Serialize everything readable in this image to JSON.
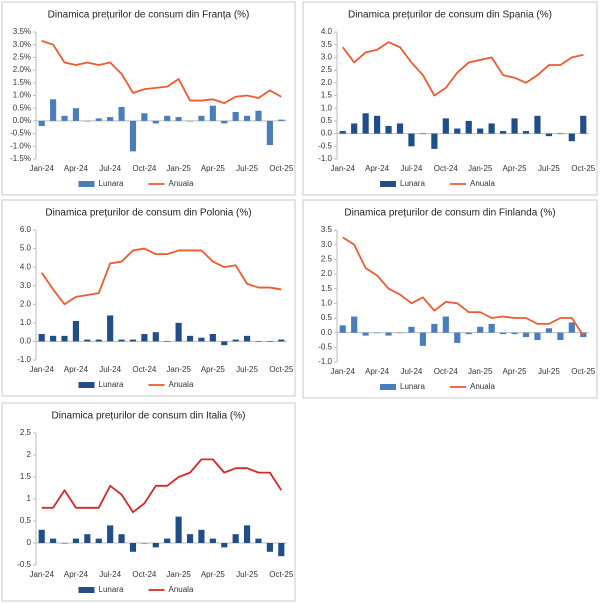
{
  "chart_data": [
    {
      "type": "combo",
      "title": "Dinamica prețurilor de consum din Franța (%)",
      "categories": [
        "Jan-24",
        null,
        null,
        "Apr-24",
        null,
        null,
        "Jul-24",
        null,
        null,
        "Oct-24",
        null,
        null,
        "Jan-25",
        null,
        null,
        "Apr-25",
        null,
        null,
        "Jul-25",
        null,
        null,
        "Oct-25"
      ],
      "series": [
        {
          "name": "Lunara",
          "type": "bar",
          "color": "#4a7ebb",
          "values": [
            -0.2,
            0.85,
            0.2,
            0.5,
            0.0,
            0.1,
            0.15,
            0.55,
            -1.2,
            0.3,
            -0.1,
            0.2,
            0.15,
            0.0,
            0.2,
            0.6,
            -0.1,
            0.35,
            0.2,
            0.4,
            -0.95,
            0.05
          ]
        },
        {
          "name": "Anuala",
          "type": "line",
          "color": "#f05a30",
          "values": [
            3.15,
            3.0,
            2.3,
            2.2,
            2.3,
            2.2,
            2.3,
            1.85,
            1.1,
            1.25,
            1.3,
            1.35,
            1.65,
            0.8,
            0.8,
            0.85,
            0.7,
            0.95,
            1.0,
            0.9,
            1.2,
            0.95
          ]
        }
      ],
      "ylim": [
        -1.5,
        3.5
      ],
      "yticks": [
        {
          "value": 3.5,
          "label": "3.5%"
        },
        {
          "value": 3.0,
          "label": "3.0%"
        },
        {
          "value": 2.5,
          "label": "2.5%"
        },
        {
          "value": 2.0,
          "label": "2.0%"
        },
        {
          "value": 1.5,
          "label": "1.5%"
        },
        {
          "value": 1.0,
          "label": "1.0%"
        },
        {
          "value": 0.5,
          "label": "0.5%"
        },
        {
          "value": 0,
          "label": "0.0%"
        },
        {
          "value": -0.5,
          "label": "-0.5%"
        },
        {
          "value": -1.0,
          "label": "-1.0%"
        },
        {
          "value": -1.5,
          "label": "-1.5%"
        }
      ],
      "legend": "bottom"
    },
    {
      "type": "combo",
      "title": "Dinamica prețurilor de consum din Spania (%)",
      "categories": [
        "Jan-24",
        null,
        null,
        "Apr-24",
        null,
        null,
        "Jul-24",
        null,
        null,
        "Oct-24",
        null,
        null,
        "Jan-25",
        null,
        null,
        "Apr-25",
        null,
        null,
        "Jul-25",
        null,
        null,
        "Oct-25"
      ],
      "series": [
        {
          "name": "Lunara",
          "type": "bar",
          "color": "#1f4e8a",
          "values": [
            0.1,
            0.4,
            0.8,
            0.7,
            0.3,
            0.4,
            -0.5,
            0.0,
            -0.6,
            0.6,
            0.2,
            0.5,
            0.2,
            0.4,
            0.1,
            0.6,
            0.1,
            0.7,
            -0.1,
            0.0,
            -0.3,
            0.7
          ]
        },
        {
          "name": "Anuala",
          "type": "line",
          "color": "#f05a30",
          "values": [
            3.4,
            2.8,
            3.2,
            3.3,
            3.6,
            3.4,
            2.8,
            2.3,
            1.5,
            1.8,
            2.4,
            2.8,
            2.9,
            3.0,
            2.3,
            2.2,
            2.0,
            2.3,
            2.7,
            2.7,
            3.0,
            3.1
          ]
        }
      ],
      "ylim": [
        -1.0,
        4.0
      ],
      "yticks": [
        {
          "value": 4.0,
          "label": "4.0"
        },
        3.5,
        {
          "value": 3.0,
          "label": "3.0"
        },
        2.5,
        {
          "value": 2.0,
          "label": "2.0"
        },
        1.5,
        {
          "value": 1.0,
          "label": "1.0"
        },
        0.5,
        {
          "value": 0,
          "label": "0.0"
        },
        -0.5,
        {
          "value": -1.0,
          "label": "-1.0"
        }
      ],
      "legend": "bottom"
    },
    {
      "type": "combo",
      "title": "Dinamica prețurilor de consum din Polonia (%)",
      "categories": [
        "Jan-24",
        null,
        null,
        "Apr-24",
        null,
        null,
        "Jul-24",
        null,
        null,
        "Oct-24",
        null,
        null,
        "Jan-25",
        null,
        null,
        "Apr-25",
        null,
        null,
        "Jul-25",
        null,
        null,
        "Oct-25"
      ],
      "series": [
        {
          "name": "Lunara",
          "type": "bar",
          "color": "#1f4e8a",
          "values": [
            0.4,
            0.3,
            0.3,
            1.1,
            0.1,
            0.1,
            1.4,
            0.1,
            0.1,
            0.4,
            0.5,
            0.0,
            1.0,
            0.3,
            0.2,
            0.4,
            -0.2,
            0.1,
            0.3,
            0.0,
            0.0,
            0.1
          ]
        },
        {
          "name": "Anuala",
          "type": "line",
          "color": "#f05a30",
          "values": [
            3.7,
            2.8,
            2.0,
            2.4,
            2.5,
            2.6,
            4.2,
            4.3,
            4.9,
            5.0,
            4.7,
            4.7,
            4.9,
            4.9,
            4.9,
            4.3,
            4.0,
            4.1,
            3.1,
            2.9,
            2.9,
            2.8
          ]
        }
      ],
      "ylim": [
        -1.0,
        6.0
      ],
      "yticks": [
        {
          "value": 6.0,
          "label": "6.0"
        },
        {
          "value": 5.0,
          "label": "5.0"
        },
        {
          "value": 4.0,
          "label": "4.0"
        },
        {
          "value": 3.0,
          "label": "3.0"
        },
        {
          "value": 2.0,
          "label": "2.0"
        },
        {
          "value": 1.0,
          "label": "1.0"
        },
        {
          "value": 0,
          "label": "0.0"
        },
        {
          "value": -1.0,
          "label": "-1.0"
        }
      ],
      "legend": "bottom"
    },
    {
      "type": "combo",
      "title": "Dinamica prețurilor de consum din Finlanda (%)",
      "categories": [
        "Jan-24",
        null,
        null,
        "Apr-24",
        null,
        null,
        "Jul-24",
        null,
        null,
        "Oct-24",
        null,
        null,
        "Jan-25",
        null,
        null,
        "Apr-25",
        null,
        null,
        "Jul-25",
        null,
        null,
        "Oct-25"
      ],
      "series": [
        {
          "name": "Lunara",
          "type": "bar",
          "color": "#4a7ebb",
          "values": [
            0.25,
            0.55,
            -0.1,
            0.0,
            -0.1,
            0.0,
            0.2,
            -0.45,
            0.3,
            0.55,
            -0.35,
            -0.05,
            0.2,
            0.3,
            -0.05,
            -0.05,
            -0.15,
            -0.25,
            0.15,
            -0.25,
            0.35,
            -0.15
          ]
        },
        {
          "name": "Anuala",
          "type": "line",
          "color": "#f05a30",
          "values": [
            3.25,
            3.0,
            2.2,
            1.95,
            1.5,
            1.3,
            1.0,
            1.2,
            0.75,
            1.05,
            1.0,
            0.7,
            0.7,
            0.5,
            0.55,
            0.5,
            0.5,
            0.3,
            0.3,
            0.5,
            0.5,
            -0.1
          ]
        }
      ],
      "ylim": [
        -1.0,
        3.5
      ],
      "yticks": [
        3.5,
        {
          "value": 3.0,
          "label": "3.0"
        },
        2.5,
        {
          "value": 2.0,
          "label": "2.0"
        },
        1.5,
        {
          "value": 1.0,
          "label": "1.0"
        },
        0.5,
        {
          "value": 0,
          "label": "0.0"
        },
        -0.5,
        {
          "value": -1.0,
          "label": "-1.0"
        }
      ],
      "legend": "bottom"
    },
    {
      "type": "combo",
      "title": "Dinamica prețurilor de consum din Italia (%)",
      "categories": [
        "Jan-24",
        null,
        null,
        "Apr-24",
        null,
        null,
        "Jul-24",
        null,
        null,
        "Oct-24",
        null,
        null,
        "Jan-25",
        null,
        null,
        "Apr-25",
        null,
        null,
        "Jul-25",
        null,
        null,
        "Oct-25"
      ],
      "series": [
        {
          "name": "Lunara",
          "type": "bar",
          "color": "#1f4e8a",
          "values": [
            0.3,
            0.1,
            0.0,
            0.1,
            0.2,
            0.1,
            0.4,
            0.2,
            -0.2,
            0.0,
            -0.1,
            0.1,
            0.6,
            0.2,
            0.3,
            0.1,
            -0.1,
            0.2,
            0.4,
            0.1,
            -0.2,
            -0.3
          ]
        },
        {
          "name": "Anuala",
          "type": "line",
          "color": "#d42a2a",
          "values": [
            0.8,
            0.8,
            1.2,
            0.8,
            0.8,
            0.8,
            1.3,
            1.1,
            0.7,
            0.9,
            1.3,
            1.3,
            1.5,
            1.6,
            1.9,
            1.9,
            1.6,
            1.7,
            1.7,
            1.6,
            1.6,
            1.2
          ]
        }
      ],
      "ylim": [
        -0.5,
        2.5
      ],
      "yticks": [
        2.5,
        2,
        1.5,
        1,
        0.5,
        0,
        -0.5
      ],
      "legend": "bottom"
    }
  ]
}
